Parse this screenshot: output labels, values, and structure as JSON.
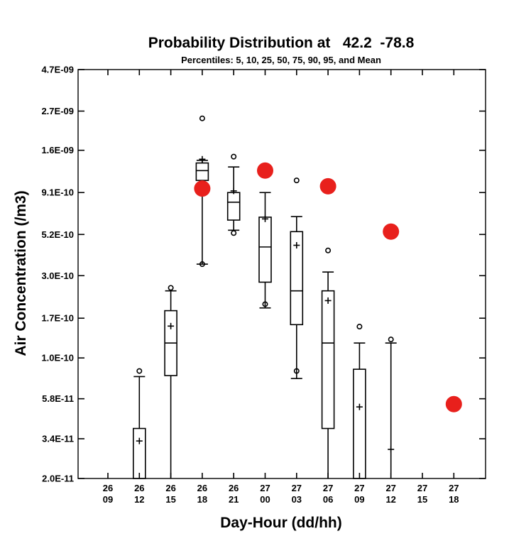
{
  "chart_data": {
    "type": "box",
    "title": "Probability Distribution at   42.2  -78.8",
    "subtitle": "Percentiles: 5, 10, 25, 50, 75, 90, 95, and Mean",
    "xlabel": "Day-Hour (dd/hh)",
    "ylabel": "Air Concentration (/m3)",
    "yscale": "log",
    "ylim": [
      2e-11,
      4.7e-09
    ],
    "yticks": [
      {
        "value": 2e-11,
        "label": "2.0E-11"
      },
      {
        "value": 3.4e-11,
        "label": "3.4E-11"
      },
      {
        "value": 5.8e-11,
        "label": "5.8E-11"
      },
      {
        "value": 1e-10,
        "label": "1.0E-10"
      },
      {
        "value": 1.7e-10,
        "label": "1.7E-10"
      },
      {
        "value": 3e-10,
        "label": "3.0E-10"
      },
      {
        "value": 5.2e-10,
        "label": "5.2E-10"
      },
      {
        "value": 9.1e-10,
        "label": "9.1E-10"
      },
      {
        "value": 1.6e-09,
        "label": "1.6E-09"
      },
      {
        "value": 2.7e-09,
        "label": "2.7E-09"
      },
      {
        "value": 4.7e-09,
        "label": "4.7E-09"
      }
    ],
    "categories": [
      {
        "day": "26",
        "hour": "09"
      },
      {
        "day": "26",
        "hour": "12"
      },
      {
        "day": "26",
        "hour": "15"
      },
      {
        "day": "26",
        "hour": "18"
      },
      {
        "day": "26",
        "hour": "21"
      },
      {
        "day": "27",
        "hour": "00"
      },
      {
        "day": "27",
        "hour": "03"
      },
      {
        "day": "27",
        "hour": "06"
      },
      {
        "day": "27",
        "hour": "09"
      },
      {
        "day": "27",
        "hour": "12"
      },
      {
        "day": "27",
        "hour": "15"
      },
      {
        "day": "27",
        "hour": "18"
      }
    ],
    "boxes": [
      {
        "category": "26 12",
        "p5": null,
        "p10": null,
        "p25": null,
        "p50": null,
        "p75": 3.9e-11,
        "p90": 7.8e-11,
        "p95": 8.4e-11,
        "mean": 3.3e-11
      },
      {
        "category": "26 15",
        "p5": null,
        "p10": null,
        "p25": 7.9e-11,
        "p50": 1.22e-10,
        "p75": 1.88e-10,
        "p90": 2.45e-10,
        "p95": 2.55e-10,
        "mean": 1.53e-10
      },
      {
        "category": "26 18",
        "p5": 3.5e-10,
        "p10": 3.5e-10,
        "p25": 1.07e-09,
        "p50": 1.22e-09,
        "p75": 1.35e-09,
        "p90": 1.4e-09,
        "p95": 2.45e-09,
        "mean": 1.42e-09
      },
      {
        "category": "26 21",
        "p5": 5.3e-10,
        "p10": 5.5e-10,
        "p25": 6.3e-10,
        "p50": 8e-10,
        "p75": 9.1e-10,
        "p90": 1.28e-09,
        "p95": 1.47e-09,
        "mean": 9.3e-10
      },
      {
        "category": "27 00",
        "p5": 2.05e-10,
        "p10": 1.95e-10,
        "p25": 2.75e-10,
        "p50": 4.4e-10,
        "p75": 6.55e-10,
        "p90": 9.1e-10,
        "p95": null,
        "mean": 6.4e-10
      },
      {
        "category": "27 03",
        "p5": 8.4e-11,
        "p10": 7.6e-11,
        "p25": 1.56e-10,
        "p50": 2.45e-10,
        "p75": 5.4e-10,
        "p90": 6.6e-10,
        "p95": 1.07e-09,
        "mean": 4.5e-10
      },
      {
        "category": "27 06",
        "p5": null,
        "p10": null,
        "p25": 3.9e-11,
        "p50": 1.22e-10,
        "p75": 2.45e-10,
        "p90": 3.15e-10,
        "p95": 4.2e-10,
        "mean": 2.15e-10
      },
      {
        "category": "27 09",
        "p5": null,
        "p10": null,
        "p25": null,
        "p50": null,
        "p75": 8.6e-11,
        "p90": 1.22e-10,
        "p95": 1.52e-10,
        "mean": 5.2e-11
      },
      {
        "category": "27 12",
        "p5": null,
        "p10": null,
        "p25": null,
        "p50": null,
        "p75": null,
        "p90": 1.22e-10,
        "p95": 1.28e-10,
        "mean": 2.95e-11
      }
    ],
    "highlight_points": [
      {
        "category": "26 18",
        "value": 9.6e-10
      },
      {
        "category": "27 00",
        "value": 1.22e-09
      },
      {
        "category": "27 06",
        "value": 9.9e-10
      },
      {
        "category": "27 12",
        "value": 5.4e-10
      },
      {
        "category": "27 18",
        "value": 5.4e-11
      }
    ],
    "highlight_color": "#e8201c",
    "grid": false
  }
}
